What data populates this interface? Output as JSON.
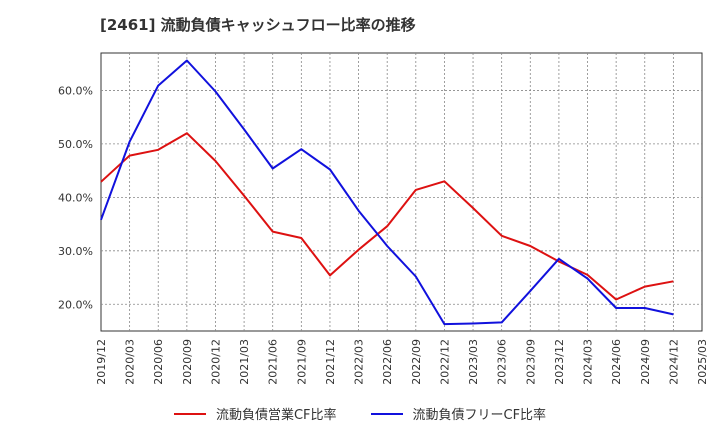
{
  "chart_data": {
    "type": "line",
    "title": "[2461]  流動負債キャッシュフロー比率の推移",
    "x": [
      "2019/12",
      "2020/03",
      "2020/06",
      "2020/09",
      "2020/12",
      "2021/03",
      "2021/06",
      "2021/09",
      "2021/12",
      "2022/03",
      "2022/06",
      "2022/09",
      "2022/12",
      "2023/03",
      "2023/06",
      "2023/09",
      "2023/12",
      "2024/03",
      "2024/06",
      "2024/09",
      "2024/12",
      "2025/03"
    ],
    "yticks": [
      "20.0%",
      "30.0%",
      "40.0%",
      "50.0%",
      "60.0%"
    ],
    "ytick_values": [
      20,
      30,
      40,
      50,
      60
    ],
    "ylim": [
      15,
      67
    ],
    "grid": true,
    "legend_position": "bottom",
    "series": [
      {
        "name": "流動負債営業CF比率",
        "color": "#dd1111",
        "values": [
          42.9,
          47.8,
          48.9,
          52.0,
          46.8,
          40.3,
          33.6,
          32.4,
          25.4,
          30.2,
          34.6,
          41.4,
          43.0,
          38.0,
          32.8,
          30.9,
          28.0,
          25.5,
          20.9,
          23.3,
          24.3,
          null
        ]
      },
      {
        "name": "流動負債フリーCF比率",
        "color": "#1111dd",
        "values": [
          35.8,
          50.4,
          60.9,
          65.6,
          59.8,
          52.7,
          45.4,
          49.0,
          45.2,
          37.5,
          30.9,
          25.2,
          16.3,
          16.4,
          16.6,
          22.5,
          28.5,
          24.8,
          19.3,
          19.3,
          18.1,
          null
        ]
      }
    ]
  }
}
